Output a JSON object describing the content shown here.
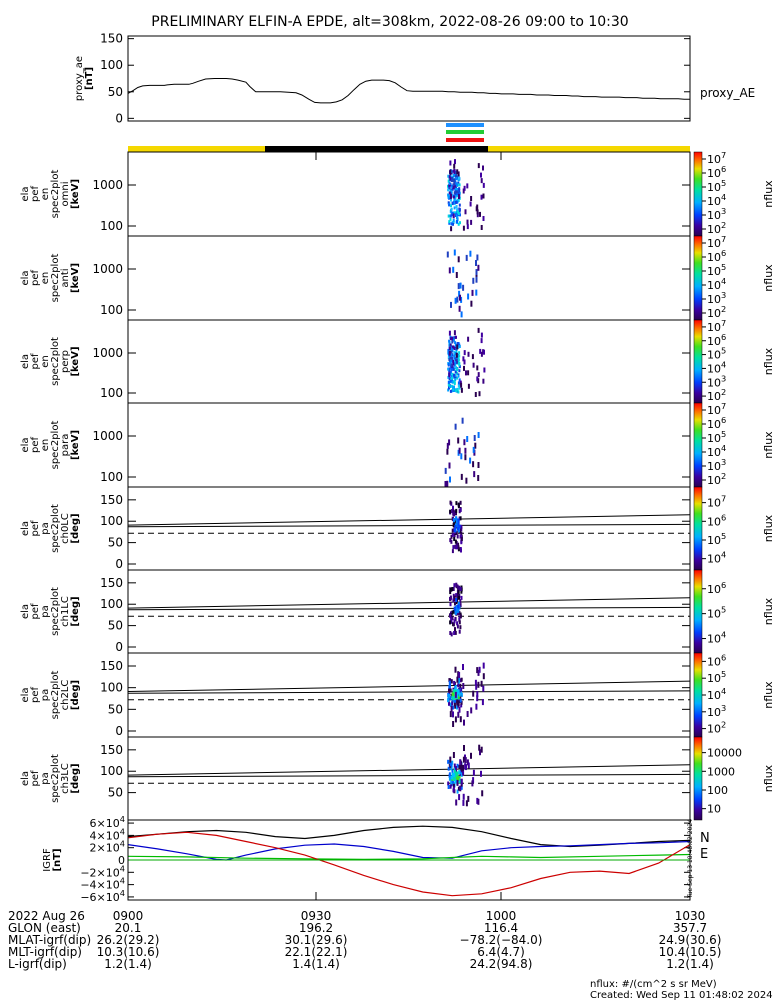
{
  "title": "PRELIMINARY ELFIN-A EPDE, alt=308km, 2022-08-26 09:00 to 10:30",
  "colors": {
    "sunlight": "#f5d800",
    "shadow": "#000000",
    "bar_blue": "#1e90ff",
    "bar_green": "#22cc33",
    "bar_red": "#ee1111",
    "grf_x": "#0000cc",
    "grf_y": "#00bb00",
    "grf_z": "#cc0000",
    "grf_total": "#000000"
  },
  "chart_data": [
    {
      "id": "proxy_ae",
      "type": "line",
      "ylabel": "proxy_ae\n[nT]",
      "legend": "proxy_AE",
      "ylim": [
        -5,
        155
      ],
      "yticks": [
        "0",
        "50",
        "100",
        "150"
      ],
      "x_minutes": [
        0,
        5,
        10,
        15,
        22,
        28,
        32,
        37,
        40,
        47,
        52,
        54,
        57,
        62,
        66,
        72,
        79,
        88,
        95,
        100,
        106,
        112,
        120,
        124,
        130,
        134,
        140,
        147,
        155,
        163,
        171,
        177,
        184,
        190,
        196,
        200,
        206,
        212,
        218,
        224,
        230,
        236,
        242,
        248,
        254,
        260,
        266,
        272,
        278,
        284,
        290,
        296,
        302,
        308,
        314,
        320,
        326,
        332,
        338,
        344,
        350,
        356,
        362,
        368,
        374,
        380,
        386,
        392,
        398,
        404,
        410,
        416,
        422,
        428,
        434,
        440,
        446,
        452,
        458,
        464,
        470,
        476,
        482,
        488,
        494,
        500,
        506,
        512,
        518,
        524,
        530,
        536,
        542,
        548,
        554,
        560,
        566,
        572
      ],
      "x_data_units_note": "",
      "y": [
        47,
        52,
        58,
        61,
        62,
        62,
        62,
        62,
        63,
        64,
        64,
        64,
        64,
        64,
        66,
        70,
        74,
        75,
        75,
        75,
        74,
        72,
        68,
        60,
        50,
        50,
        50,
        50,
        50,
        49,
        48,
        44,
        36,
        30,
        29,
        29,
        29,
        31,
        35,
        43,
        54,
        64,
        70,
        72,
        72,
        72,
        71,
        67,
        59,
        52,
        51,
        51,
        51,
        51,
        51,
        51,
        50,
        50,
        49,
        49,
        49,
        48,
        48,
        47,
        47,
        46,
        46,
        46,
        45,
        45,
        45,
        44,
        44,
        44,
        43,
        43,
        43,
        42,
        42,
        41,
        41,
        41,
        40,
        40,
        40,
        40,
        39,
        39,
        39,
        38,
        38,
        38,
        37,
        37,
        37,
        37,
        36,
        36
      ]
    },
    {
      "id": "energy_spectrograms",
      "type": "heatmap",
      "panels": [
        {
          "label": "ela\npef\nen\nspec2plot\nomni\n[keV]",
          "yticks": [
            "100",
            "1000"
          ],
          "cbar_ticks": [
            "10^2",
            "10^3",
            "10^4",
            "10^5",
            "10^6",
            "10^7"
          ],
          "cbar_label": "nflux",
          "intensity": "high"
        },
        {
          "label": "ela\npef\nen\nspec2plot\nanti\n[keV]",
          "yticks": [
            "100",
            "1000"
          ],
          "cbar_ticks": [
            "10^2",
            "10^3",
            "10^4",
            "10^5",
            "10^6",
            "10^7"
          ],
          "cbar_label": "nflux",
          "intensity": "low"
        },
        {
          "label": "ela\npef\nen\nspec2plot\nperp\n[keV]",
          "yticks": [
            "100",
            "1000"
          ],
          "cbar_ticks": [
            "10^2",
            "10^3",
            "10^4",
            "10^5",
            "10^6",
            "10^7"
          ],
          "cbar_label": "nflux",
          "intensity": "high"
        },
        {
          "label": "ela\npef\nen\nspec2plot\npara\n[keV]",
          "yticks": [
            "100",
            "1000"
          ],
          "cbar_ticks": [
            "10^2",
            "10^3",
            "10^4",
            "10^5",
            "10^6",
            "10^7"
          ],
          "cbar_label": "nflux",
          "intensity": "low"
        }
      ]
    },
    {
      "id": "pitch_angle_spectrograms",
      "type": "heatmap",
      "panels": [
        {
          "label": "ela\npef\npa\nspec2plot\nch0LC\n[deg]",
          "yticks": [
            "0",
            "50",
            "100",
            "150"
          ],
          "cbar_ticks": [
            "10^4",
            "10^5",
            "10^6",
            "10^7"
          ],
          "cbar_label": "nflux"
        },
        {
          "label": "ela\npef\npa\nspec2plot\nch1LC\n[deg]",
          "yticks": [
            "0",
            "50",
            "100",
            "150"
          ],
          "cbar_ticks": [
            "10^4",
            "10^5",
            "10^6"
          ],
          "cbar_label": "nflux"
        },
        {
          "label": "ela\npef\npa\nspec2plot\nch2LC\n[deg]",
          "yticks": [
            "0",
            "50",
            "100",
            "150"
          ],
          "cbar_ticks": [
            "10^2",
            "10^3",
            "10^4",
            "10^5",
            "10^6"
          ],
          "cbar_label": "nflux"
        },
        {
          "label": "ela\npef\npa\nspec2plot\nch3LC\n[deg]",
          "yticks": [
            "50",
            "100",
            "150"
          ],
          "cbar_ticks": [
            "10",
            "100",
            "1000",
            "10000"
          ],
          "cbar_label": "nflux"
        }
      ]
    },
    {
      "id": "igrf",
      "type": "line",
      "ylabel": "IGRF\n[nT]",
      "ylim": [
        -65000,
        65000
      ],
      "yticks": [
        "6×10^4",
        "4×10^4",
        "2×10^4",
        "0",
        "−2×10^4",
        "−4×10^4",
        "−6×10^4"
      ],
      "legend": [
        "N",
        "E"
      ],
      "side_note": "Tue Sep 13 18:48:02 2024",
      "series": [
        {
          "color_key": "grf_total",
          "x_minutes": [
            0,
            30,
            60,
            90,
            120,
            150,
            180,
            210,
            240,
            270,
            300,
            330,
            360,
            390,
            420,
            450,
            480,
            510,
            540,
            572
          ],
          "y": [
            38000,
            42000,
            46000,
            48000,
            45000,
            38000,
            35000,
            40000,
            48000,
            53000,
            55000,
            53000,
            46000,
            35000,
            25000,
            22000,
            24000,
            27000,
            30000,
            32000
          ]
        },
        {
          "color_key": "grf_x",
          "x_minutes": [
            0,
            30,
            60,
            90,
            100,
            120,
            150,
            180,
            210,
            240,
            270,
            300,
            330,
            360,
            390,
            420,
            450,
            480,
            510,
            540,
            572
          ],
          "y": [
            25000,
            18000,
            10000,
            1000,
            0,
            8000,
            18000,
            24000,
            26000,
            22000,
            14000,
            4000,
            3000,
            15000,
            20000,
            22000,
            23000,
            25000,
            27000,
            28000,
            30000
          ]
        },
        {
          "color_key": "grf_y",
          "x_minutes": [
            0,
            60,
            120,
            180,
            240,
            300,
            330,
            360,
            390,
            420,
            480,
            540,
            572
          ],
          "y": [
            6000,
            5000,
            3000,
            2000,
            1000,
            2000,
            4000,
            6000,
            5000,
            4000,
            6000,
            8000,
            9000
          ]
        },
        {
          "color_key": "grf_z",
          "x_minutes": [
            0,
            30,
            60,
            90,
            120,
            150,
            180,
            210,
            240,
            270,
            300,
            330,
            360,
            390,
            420,
            450,
            480,
            510,
            540,
            572
          ],
          "y": [
            36000,
            42000,
            45000,
            40000,
            30000,
            20000,
            8000,
            -8000,
            -25000,
            -40000,
            -52000,
            -58000,
            -55000,
            -45000,
            -30000,
            -20000,
            -18000,
            -22000,
            -5000,
            25000
          ]
        }
      ]
    }
  ],
  "time_axis": {
    "ticks": [
      "0900",
      "0930",
      "1000",
      "1030"
    ],
    "rows": [
      {
        "label": "2022 Aug 26",
        "values": [
          "0900",
          "0930",
          "1000",
          "1030"
        ]
      },
      {
        "label": "GLON (east)",
        "values": [
          "20.1",
          "196.2",
          "116.4",
          "357.7"
        ]
      },
      {
        "label": "MLAT-igrf(dip)",
        "values": [
          "26.2(29.2)",
          "30.1(29.6)",
          "−78.2(−84.0)",
          "24.9(30.6)"
        ]
      },
      {
        "label": "MLT-igrf(dip)",
        "values": [
          "10.3(10.6)",
          "22.1(22.1)",
          "6.4(4.7)",
          "10.4(10.5)"
        ]
      },
      {
        "label": "L-igrf(dip)",
        "values": [
          "1.2(1.4)",
          "1.4(1.4)",
          "24.2(94.8)",
          "1.2(1.4)"
        ]
      }
    ]
  },
  "footer": {
    "units": "nflux: #/(cm^2 s sr MeV)",
    "created": "Created: Wed Sep 11 01:48:02 2024"
  }
}
